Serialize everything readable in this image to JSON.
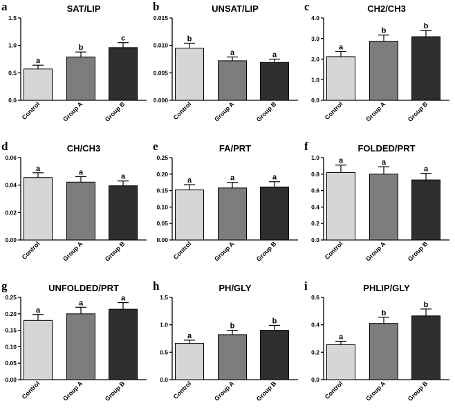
{
  "colors": {
    "control": "#d6d6d6",
    "group_a": "#7d7d7d",
    "group_b": "#2e2e2e"
  },
  "chart_data": [
    {
      "type": "bar",
      "letter": "a",
      "title": "SAT/LIP",
      "categories": [
        "Control",
        "Group A",
        "Group B"
      ],
      "values": [
        0.57,
        0.79,
        0.96
      ],
      "errors": [
        0.07,
        0.09,
        0.09
      ],
      "significance": [
        "a",
        "b",
        "c"
      ],
      "ylim": [
        0,
        1.5
      ],
      "yticks": [
        "0.0",
        "0.5",
        "1.0",
        "1.5"
      ],
      "xlabel": "",
      "ylabel": ""
    },
    {
      "type": "bar",
      "letter": "b",
      "title": "UNSAT/LIP",
      "categories": [
        "Control",
        "Group A",
        "Group B"
      ],
      "values": [
        0.0095,
        0.0072,
        0.0069
      ],
      "errors": [
        0.0009,
        0.0007,
        0.0006
      ],
      "significance": [
        "b",
        "a",
        "a"
      ],
      "ylim": [
        0,
        0.015
      ],
      "yticks": [
        "0.000",
        "0.005",
        "0.010",
        "0.015"
      ],
      "xlabel": "",
      "ylabel": ""
    },
    {
      "type": "bar",
      "letter": "c",
      "title": "CH2/CH3",
      "categories": [
        "Control",
        "Group A",
        "Group B"
      ],
      "values": [
        2.12,
        2.87,
        3.09
      ],
      "errors": [
        0.25,
        0.3,
        0.3
      ],
      "significance": [
        "a",
        "b",
        "b"
      ],
      "ylim": [
        0,
        4.0
      ],
      "yticks": [
        "0.0",
        "1.0",
        "2.0",
        "3.0",
        "4.0"
      ],
      "xlabel": "",
      "ylabel": ""
    },
    {
      "type": "bar",
      "letter": "d",
      "title": "CH/CH3",
      "categories": [
        "Control",
        "Group A",
        "Group B"
      ],
      "values": [
        0.0455,
        0.0422,
        0.0395
      ],
      "errors": [
        0.0035,
        0.004,
        0.0035
      ],
      "significance": [
        "a",
        "a",
        "a"
      ],
      "ylim": [
        0,
        0.06
      ],
      "yticks": [
        "0.00",
        "0.02",
        "0.04",
        "0.06"
      ],
      "xlabel": "",
      "ylabel": ""
    },
    {
      "type": "bar",
      "letter": "e",
      "title": "FA/PRT",
      "categories": [
        "Control",
        "Group A",
        "Group B"
      ],
      "values": [
        0.152,
        0.158,
        0.161
      ],
      "errors": [
        0.016,
        0.017,
        0.016
      ],
      "significance": [
        "a",
        "a",
        "a"
      ],
      "ylim": [
        0,
        0.25
      ],
      "yticks": [
        "0.00",
        "0.05",
        "0.10",
        "0.15",
        "0.20",
        "0.25"
      ],
      "xlabel": "",
      "ylabel": ""
    },
    {
      "type": "bar",
      "letter": "f",
      "title": "FOLDED/PRT",
      "categories": [
        "Control",
        "Group A",
        "Group B"
      ],
      "values": [
        0.82,
        0.8,
        0.73
      ],
      "errors": [
        0.09,
        0.09,
        0.08
      ],
      "significance": [
        "a",
        "a",
        "a"
      ],
      "ylim": [
        0,
        1.0
      ],
      "yticks": [
        "0.0",
        "0.2",
        "0.4",
        "0.6",
        "0.8",
        "1.0"
      ],
      "xlabel": "",
      "ylabel": ""
    },
    {
      "type": "bar",
      "letter": "g",
      "title": "UNFOLDED/PRT",
      "categories": [
        "Control",
        "Group A",
        "Group B"
      ],
      "values": [
        0.18,
        0.2,
        0.214
      ],
      "errors": [
        0.018,
        0.02,
        0.02
      ],
      "significance": [
        "a",
        "a",
        "a"
      ],
      "ylim": [
        0,
        0.25
      ],
      "yticks": [
        "0.00",
        "0.05",
        "0.10",
        "0.15",
        "0.20",
        "0.25"
      ],
      "xlabel": "",
      "ylabel": ""
    },
    {
      "type": "bar",
      "letter": "h",
      "title": "PH/GLY",
      "categories": [
        "Control",
        "Group A",
        "Group B"
      ],
      "values": [
        0.66,
        0.82,
        0.9
      ],
      "errors": [
        0.06,
        0.08,
        0.09
      ],
      "significance": [
        "a",
        "b",
        "b"
      ],
      "ylim": [
        0,
        1.5
      ],
      "yticks": [
        "0.0",
        "0.5",
        "1.0",
        "1.5"
      ],
      "xlabel": "",
      "ylabel": ""
    },
    {
      "type": "bar",
      "letter": "i",
      "title": "PHLIP/GLY",
      "categories": [
        "Control",
        "Group A",
        "Group B"
      ],
      "values": [
        0.255,
        0.41,
        0.465
      ],
      "errors": [
        0.025,
        0.045,
        0.05
      ],
      "significance": [
        "a",
        "b",
        "b"
      ],
      "ylim": [
        0,
        0.6
      ],
      "yticks": [
        "0.0",
        "0.2",
        "0.4",
        "0.6"
      ],
      "xlabel": "",
      "ylabel": ""
    }
  ]
}
